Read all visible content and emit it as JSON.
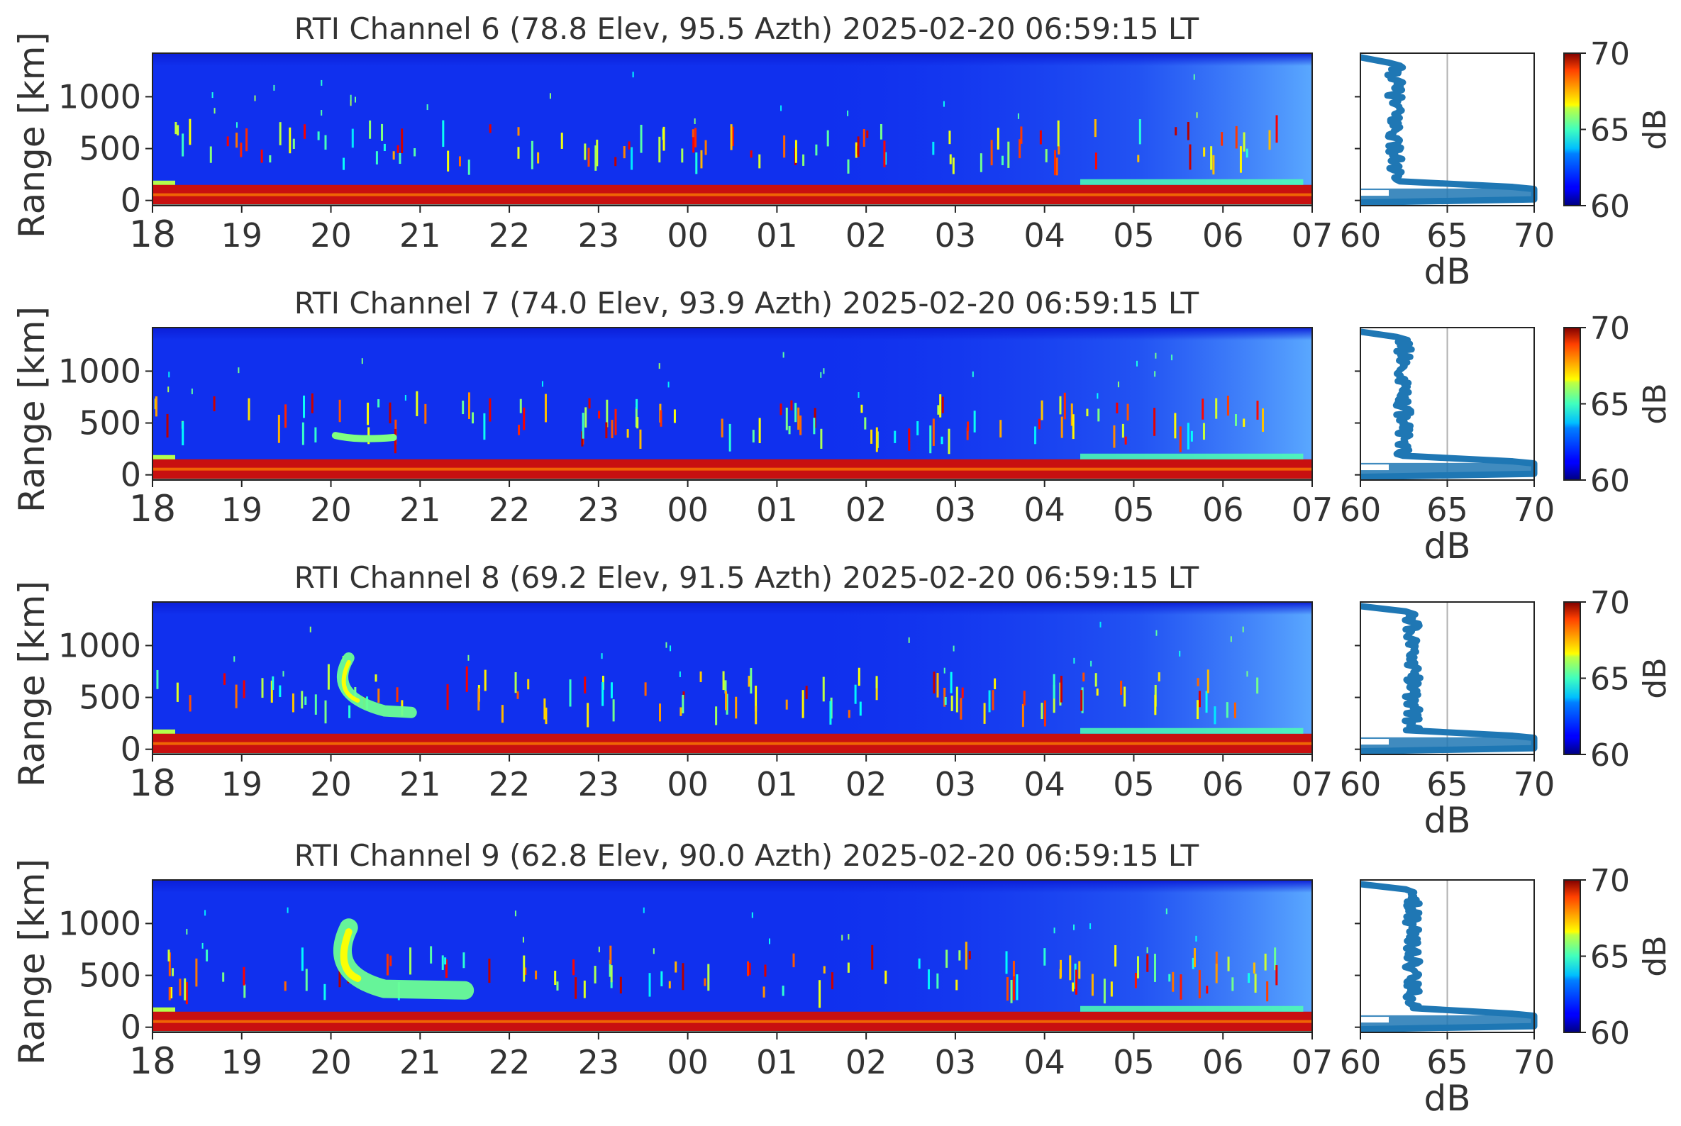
{
  "chart_data": [
    {
      "type": "heatmap",
      "panel": "rti",
      "title": "RTI  Channel 6 (78.8 Elev,  95.5 Azth) 2025-02-20 06:59:15 LT",
      "ylabel": "Range [km]",
      "xlabel": "",
      "x_ticks": [
        "18",
        "19",
        "20",
        "21",
        "22",
        "23",
        "00",
        "01",
        "02",
        "03",
        "04",
        "05",
        "06",
        "07"
      ],
      "y_ticks": [
        1000,
        500,
        0
      ],
      "ylim": [
        -50,
        1420
      ],
      "profile": {
        "xlabel": "dB",
        "x_ticks": [
          60,
          65,
          70
        ],
        "xlim": [
          60,
          70
        ],
        "reference_line_db": 65,
        "noise_level_db": 62.0,
        "peak_db": 70
      },
      "colorbar": {
        "label": "dB",
        "ticks": [
          70,
          65,
          60
        ],
        "range": [
          60,
          70
        ],
        "colormap": "jet"
      },
      "feature": "none"
    },
    {
      "type": "heatmap",
      "panel": "rti",
      "title": "RTI  Channel 7 (74.0 Elev,  93.9 Azth) 2025-02-20 06:59:15 LT",
      "ylabel": "Range [km]",
      "xlabel": "",
      "x_ticks": [
        "18",
        "19",
        "20",
        "21",
        "22",
        "23",
        "00",
        "01",
        "02",
        "03",
        "04",
        "05",
        "06",
        "07"
      ],
      "y_ticks": [
        1000,
        500,
        0
      ],
      "ylim": [
        -50,
        1420
      ],
      "profile": {
        "xlabel": "dB",
        "x_ticks": [
          60,
          65,
          70
        ],
        "xlim": [
          60,
          70
        ],
        "reference_line_db": 65,
        "noise_level_db": 62.5,
        "peak_db": 70
      },
      "colorbar": {
        "label": "dB",
        "ticks": [
          70,
          65,
          60
        ],
        "range": [
          60,
          70
        ],
        "colormap": "jet"
      },
      "feature": "streak"
    },
    {
      "type": "heatmap",
      "panel": "rti",
      "title": "RTI  Channel 8 (69.2 Elev,  91.5 Azth) 2025-02-20 06:59:15 LT",
      "ylabel": "Range [km]",
      "xlabel": "",
      "x_ticks": [
        "18",
        "19",
        "20",
        "21",
        "22",
        "23",
        "00",
        "01",
        "02",
        "03",
        "04",
        "05",
        "06",
        "07"
      ],
      "y_ticks": [
        1000,
        500,
        0
      ],
      "ylim": [
        -50,
        1420
      ],
      "profile": {
        "xlabel": "dB",
        "x_ticks": [
          60,
          65,
          70
        ],
        "xlim": [
          60,
          70
        ],
        "reference_line_db": 65,
        "noise_level_db": 63.0,
        "peak_db": 70
      },
      "colorbar": {
        "label": "dB",
        "ticks": [
          70,
          65,
          60
        ],
        "range": [
          60,
          70
        ],
        "colormap": "jet"
      },
      "feature": "crescent"
    },
    {
      "type": "heatmap",
      "panel": "rti",
      "title": "RTI  Channel 9 (62.8 Elev,  90.0 Azth) 2025-02-20 06:59:15 LT",
      "ylabel": "Range [km]",
      "xlabel": "",
      "x_ticks": [
        "18",
        "19",
        "20",
        "21",
        "22",
        "23",
        "00",
        "01",
        "02",
        "03",
        "04",
        "05",
        "06",
        "07"
      ],
      "y_ticks": [
        1000,
        500,
        0
      ],
      "ylim": [
        -50,
        1420
      ],
      "profile": {
        "xlabel": "dB",
        "x_ticks": [
          60,
          65,
          70
        ],
        "xlim": [
          60,
          70
        ],
        "reference_line_db": 65,
        "noise_level_db": 63.0,
        "peak_db": 70
      },
      "colorbar": {
        "label": "dB",
        "ticks": [
          70,
          65,
          60
        ],
        "range": [
          60,
          70
        ],
        "colormap": "jet"
      },
      "feature": "crescent-big"
    }
  ]
}
